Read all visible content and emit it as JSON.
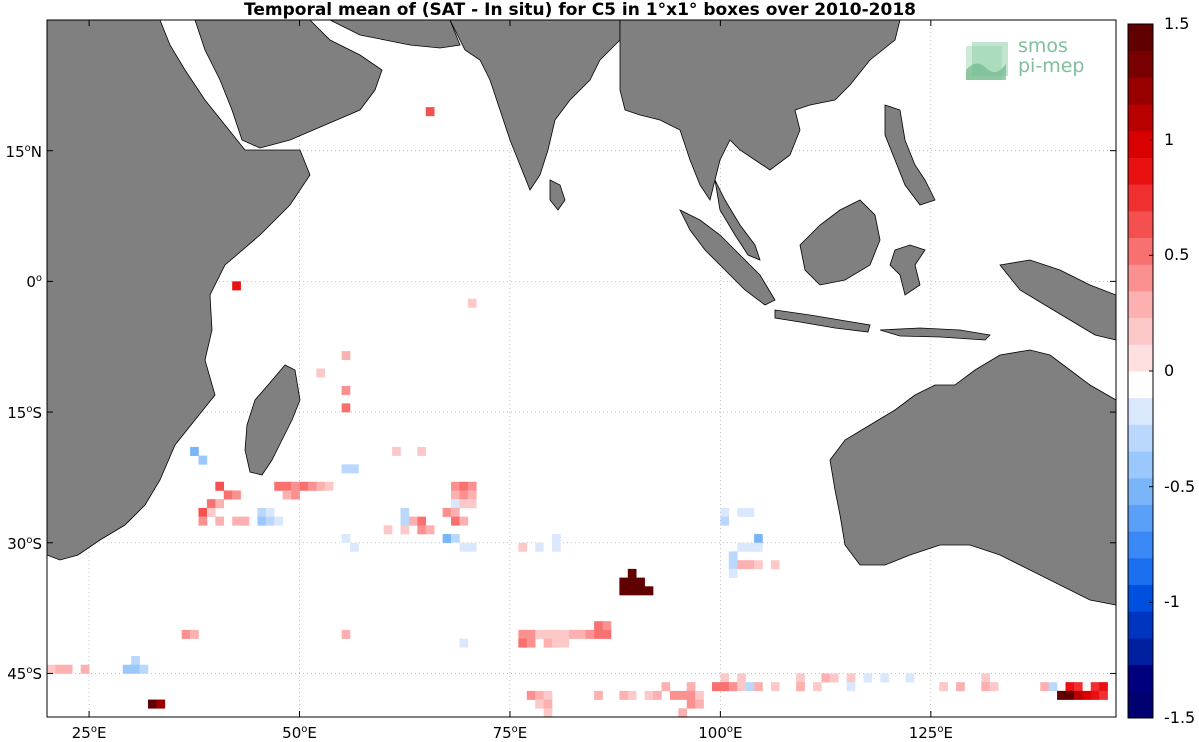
{
  "title": "Temporal mean of (SAT - In situ) for C5 in 1°x1° boxes over 2010-2018",
  "logo": {
    "line1": "smos",
    "line2": "pi-mep"
  },
  "chart_data": {
    "type": "heatmap",
    "title": "Temporal mean of (SAT - In situ) for C5 in 1°x1° boxes over 2010-2018",
    "projection": "equirectangular",
    "lon_range": [
      20,
      147
    ],
    "lat_range": [
      -50,
      30
    ],
    "x_ticks": [
      {
        "value": 25,
        "deg": "25",
        "hemi": "E"
      },
      {
        "value": 50,
        "deg": "50",
        "hemi": "E"
      },
      {
        "value": 75,
        "deg": "75",
        "hemi": "E"
      },
      {
        "value": 100,
        "deg": "100",
        "hemi": "E"
      },
      {
        "value": 125,
        "deg": "125",
        "hemi": "E"
      }
    ],
    "y_ticks": [
      {
        "value": 15,
        "deg": "15",
        "hemi": "N"
      },
      {
        "value": 0,
        "deg": "0",
        "hemi": ""
      },
      {
        "value": -15,
        "deg": "15",
        "hemi": "S"
      },
      {
        "value": -30,
        "deg": "30",
        "hemi": "S"
      },
      {
        "value": -45,
        "deg": "45",
        "hemi": "S"
      }
    ],
    "grid": true,
    "land_color": "#808080",
    "colorbar": {
      "min": -1.5,
      "max": 1.5,
      "ticks": [
        "1.5",
        "1",
        "0.5",
        "0",
        "-0.5",
        "-1",
        "-1.5"
      ],
      "tick_values": [
        1.5,
        1,
        0.5,
        0,
        -0.5,
        -1,
        -1.5
      ],
      "colors": [
        "#000070",
        "#00007f",
        "#0020a0",
        "#0035c0",
        "#0050e0",
        "#1a6ef0",
        "#3a88f5",
        "#5aa0f8",
        "#7ab5fa",
        "#9ac8fc",
        "#bad8fd",
        "#dae8fe",
        "#ffffff",
        "#fee0e0",
        "#fdc8c8",
        "#fcb0b0",
        "#fa9090",
        "#f87070",
        "#f55050",
        "#f03030",
        "#e81010",
        "#d80000",
        "#b80000",
        "#980000",
        "#780000",
        "#600000"
      ]
    },
    "cells": [
      {
        "lon": 65,
        "lat": 19,
        "v": 0.6
      },
      {
        "lon": 42,
        "lat": -1,
        "v": 0.9
      },
      {
        "lon": 70,
        "lat": -3,
        "v": 0.15
      },
      {
        "lon": 55,
        "lat": -9,
        "v": 0.3
      },
      {
        "lon": 52,
        "lat": -11,
        "v": 0.2
      },
      {
        "lon": 55,
        "lat": -13,
        "v": 0.4
      },
      {
        "lon": 55,
        "lat": -15,
        "v": 0.5
      },
      {
        "lon": 37,
        "lat": -20,
        "v": -0.5
      },
      {
        "lon": 38,
        "lat": -21,
        "v": -0.4
      },
      {
        "lon": 61,
        "lat": -20,
        "v": 0.15
      },
      {
        "lon": 64,
        "lat": -20,
        "v": 0.2
      },
      {
        "lon": 55,
        "lat": -22,
        "v": -0.3
      },
      {
        "lon": 56,
        "lat": -22,
        "v": -0.3
      },
      {
        "lon": 47,
        "lat": -24,
        "v": 0.5
      },
      {
        "lon": 48,
        "lat": -24,
        "v": 0.5
      },
      {
        "lon": 49,
        "lat": -24,
        "v": 0.4
      },
      {
        "lon": 50,
        "lat": -24,
        "v": 0.5
      },
      {
        "lon": 51,
        "lat": -24,
        "v": 0.4
      },
      {
        "lon": 52,
        "lat": -24,
        "v": 0.3
      },
      {
        "lon": 53,
        "lat": -24,
        "v": 0.2
      },
      {
        "lon": 48,
        "lat": -25,
        "v": 0.3
      },
      {
        "lon": 49,
        "lat": -25,
        "v": 0.4
      },
      {
        "lon": 40,
        "lat": -24,
        "v": 0.6
      },
      {
        "lon": 41,
        "lat": -25,
        "v": 0.5
      },
      {
        "lon": 42,
        "lat": -25,
        "v": 0.4
      },
      {
        "lon": 39,
        "lat": -26,
        "v": 0.5
      },
      {
        "lon": 40,
        "lat": -26,
        "v": 0.3
      },
      {
        "lon": 38,
        "lat": -27,
        "v": 0.6
      },
      {
        "lon": 39,
        "lat": -27,
        "v": 0.2
      },
      {
        "lon": 38,
        "lat": -28,
        "v": 0.4
      },
      {
        "lon": 40,
        "lat": -28,
        "v": 0.3
      },
      {
        "lon": 42,
        "lat": -28,
        "v": 0.3
      },
      {
        "lon": 43,
        "lat": -28,
        "v": 0.3
      },
      {
        "lon": 45,
        "lat": -27,
        "v": -0.3
      },
      {
        "lon": 46,
        "lat": -27,
        "v": -0.2
      },
      {
        "lon": 45,
        "lat": -28,
        "v": -0.4
      },
      {
        "lon": 46,
        "lat": -28,
        "v": -0.3
      },
      {
        "lon": 47,
        "lat": -28,
        "v": -0.2
      },
      {
        "lon": 68,
        "lat": -24,
        "v": 0.4
      },
      {
        "lon": 69,
        "lat": -24,
        "v": 0.5
      },
      {
        "lon": 70,
        "lat": -24,
        "v": 0.4
      },
      {
        "lon": 68,
        "lat": -25,
        "v": 0.3
      },
      {
        "lon": 69,
        "lat": -25,
        "v": 0.35
      },
      {
        "lon": 70,
        "lat": -25,
        "v": 0.3
      },
      {
        "lon": 68,
        "lat": -26,
        "v": -0.2
      },
      {
        "lon": 69,
        "lat": -26,
        "v": 0.2
      },
      {
        "lon": 70,
        "lat": -26,
        "v": 0.2
      },
      {
        "lon": 67,
        "lat": -27,
        "v": 0.4
      },
      {
        "lon": 68,
        "lat": -27,
        "v": 0.3
      },
      {
        "lon": 68,
        "lat": -28,
        "v": 0.5
      },
      {
        "lon": 69,
        "lat": -28,
        "v": 0.3
      },
      {
        "lon": 62,
        "lat": -27,
        "v": -0.3
      },
      {
        "lon": 62,
        "lat": -28,
        "v": -0.25
      },
      {
        "lon": 63,
        "lat": -28,
        "v": 0.3
      },
      {
        "lon": 64,
        "lat": -28,
        "v": 0.5
      },
      {
        "lon": 64,
        "lat": -29,
        "v": 0.4
      },
      {
        "lon": 65,
        "lat": -29,
        "v": 0.3
      },
      {
        "lon": 60,
        "lat": -29,
        "v": 0.2
      },
      {
        "lon": 62,
        "lat": -29,
        "v": 0.2
      },
      {
        "lon": 67,
        "lat": -30,
        "v": -0.5
      },
      {
        "lon": 68,
        "lat": -30,
        "v": -0.3
      },
      {
        "lon": 69,
        "lat": -31,
        "v": -0.2
      },
      {
        "lon": 70,
        "lat": -31,
        "v": -0.15
      },
      {
        "lon": 68,
        "lat": -31,
        "v": -0.1
      },
      {
        "lon": 55,
        "lat": -30,
        "v": -0.15
      },
      {
        "lon": 55,
        "lat": -31,
        "v": -0.1
      },
      {
        "lon": 56,
        "lat": -31,
        "v": -0.15
      },
      {
        "lon": 76,
        "lat": -31,
        "v": 0.2
      },
      {
        "lon": 79,
        "lat": -30,
        "v": -0.1
      },
      {
        "lon": 80,
        "lat": -30,
        "v": -0.15
      },
      {
        "lon": 78,
        "lat": -31,
        "v": -0.15
      },
      {
        "lon": 79,
        "lat": -31,
        "v": -0.1
      },
      {
        "lon": 80,
        "lat": -31,
        "v": -0.15
      },
      {
        "lon": 100,
        "lat": -27,
        "v": -0.2
      },
      {
        "lon": 102,
        "lat": -27,
        "v": -0.15
      },
      {
        "lon": 103,
        "lat": -27,
        "v": -0.15
      },
      {
        "lon": 100,
        "lat": -28,
        "v": -0.3
      },
      {
        "lon": 104,
        "lat": -30,
        "v": -0.5
      },
      {
        "lon": 102,
        "lat": -31,
        "v": -0.2
      },
      {
        "lon": 103,
        "lat": -31,
        "v": -0.2
      },
      {
        "lon": 104,
        "lat": -31,
        "v": -0.2
      },
      {
        "lon": 101,
        "lat": -32,
        "v": -0.3
      },
      {
        "lon": 101,
        "lat": -33,
        "v": -0.25
      },
      {
        "lon": 102,
        "lat": -33,
        "v": 0.3
      },
      {
        "lon": 103,
        "lat": -33,
        "v": 0.3
      },
      {
        "lon": 104,
        "lat": -33,
        "v": 0.2
      },
      {
        "lon": 106,
        "lat": -33,
        "v": 0.2
      },
      {
        "lon": 101,
        "lat": -34,
        "v": -0.2
      },
      {
        "lon": 89,
        "lat": -34,
        "v": 1.5
      },
      {
        "lon": 88,
        "lat": -35,
        "v": 1.5
      },
      {
        "lon": 89,
        "lat": -35,
        "v": 1.5
      },
      {
        "lon": 90,
        "lat": -35,
        "v": 1.5
      },
      {
        "lon": 88,
        "lat": -36,
        "v": 1.5
      },
      {
        "lon": 89,
        "lat": -36,
        "v": 1.5
      },
      {
        "lon": 90,
        "lat": -36,
        "v": 1.5
      },
      {
        "lon": 91,
        "lat": -36,
        "v": 1.5
      },
      {
        "lon": 36,
        "lat": -41,
        "v": 0.4
      },
      {
        "lon": 37,
        "lat": -41,
        "v": 0.3
      },
      {
        "lon": 55,
        "lat": -41,
        "v": 0.3
      },
      {
        "lon": 69,
        "lat": -42,
        "v": -0.2
      },
      {
        "lon": 76,
        "lat": -41,
        "v": 0.4
      },
      {
        "lon": 77,
        "lat": -41,
        "v": 0.4
      },
      {
        "lon": 78,
        "lat": -41,
        "v": 0.2
      },
      {
        "lon": 79,
        "lat": -41,
        "v": 0.2
      },
      {
        "lon": 80,
        "lat": -41,
        "v": 0.2
      },
      {
        "lon": 81,
        "lat": -41,
        "v": 0.2
      },
      {
        "lon": 82,
        "lat": -41,
        "v": 0.3
      },
      {
        "lon": 83,
        "lat": -41,
        "v": 0.3
      },
      {
        "lon": 84,
        "lat": -41,
        "v": 0.4
      },
      {
        "lon": 85,
        "lat": -41,
        "v": 0.5
      },
      {
        "lon": 86,
        "lat": -41,
        "v": 0.5
      },
      {
        "lon": 85,
        "lat": -40,
        "v": 0.5
      },
      {
        "lon": 86,
        "lat": -40,
        "v": 0.45
      },
      {
        "lon": 76,
        "lat": -42,
        "v": 0.5
      },
      {
        "lon": 77,
        "lat": -42,
        "v": 0.4
      },
      {
        "lon": 79,
        "lat": -42,
        "v": 0.3
      },
      {
        "lon": 80,
        "lat": -42,
        "v": 0.2
      },
      {
        "lon": 81,
        "lat": -42,
        "v": 0.15
      },
      {
        "lon": 20,
        "lat": -45,
        "v": 0.2
      },
      {
        "lon": 21,
        "lat": -45,
        "v": 0.3
      },
      {
        "lon": 22,
        "lat": -45,
        "v": 0.3
      },
      {
        "lon": 24,
        "lat": -45,
        "v": 0.3
      },
      {
        "lon": 30,
        "lat": -44,
        "v": -0.3
      },
      {
        "lon": 29,
        "lat": -45,
        "v": -0.4
      },
      {
        "lon": 30,
        "lat": -45,
        "v": -0.4
      },
      {
        "lon": 31,
        "lat": -45,
        "v": -0.3
      },
      {
        "lon": 32,
        "lat": -49,
        "v": 1.5
      },
      {
        "lon": 33,
        "lat": -49,
        "v": 1.2
      },
      {
        "lon": 100,
        "lat": -46,
        "v": 0.2
      },
      {
        "lon": 102,
        "lat": -46,
        "v": 0.2
      },
      {
        "lon": 109,
        "lat": -46,
        "v": 0.2
      },
      {
        "lon": 112,
        "lat": -46,
        "v": 0.3
      },
      {
        "lon": 113,
        "lat": -46,
        "v": 0.2
      },
      {
        "lon": 115,
        "lat": -46,
        "v": 0.2
      },
      {
        "lon": 117,
        "lat": -46,
        "v": -0.15
      },
      {
        "lon": 119,
        "lat": -46,
        "v": -0.2
      },
      {
        "lon": 122,
        "lat": -46,
        "v": -0.2
      },
      {
        "lon": 131,
        "lat": -46,
        "v": 0.2
      },
      {
        "lon": 99,
        "lat": -47,
        "v": 0.5
      },
      {
        "lon": 100,
        "lat": -47,
        "v": 0.5
      },
      {
        "lon": 101,
        "lat": -47,
        "v": 0.4
      },
      {
        "lon": 102,
        "lat": -47,
        "v": 0.2
      },
      {
        "lon": 103,
        "lat": -47,
        "v": -0.3
      },
      {
        "lon": 104,
        "lat": -47,
        "v": 0.3
      },
      {
        "lon": 106,
        "lat": -47,
        "v": 0.2
      },
      {
        "lon": 109,
        "lat": -47,
        "v": 0.3
      },
      {
        "lon": 111,
        "lat": -47,
        "v": 0.2
      },
      {
        "lon": 115,
        "lat": -47,
        "v": -0.2
      },
      {
        "lon": 126,
        "lat": -47,
        "v": 0.2
      },
      {
        "lon": 128,
        "lat": -47,
        "v": 0.3
      },
      {
        "lon": 131,
        "lat": -47,
        "v": 0.3
      },
      {
        "lon": 132,
        "lat": -47,
        "v": 0.2
      },
      {
        "lon": 138,
        "lat": -47,
        "v": 0.3
      },
      {
        "lon": 139,
        "lat": -47,
        "v": -0.3
      },
      {
        "lon": 141,
        "lat": -47,
        "v": 0.9
      },
      {
        "lon": 142,
        "lat": -47,
        "v": 0.8
      },
      {
        "lon": 144,
        "lat": -47,
        "v": 0.8
      },
      {
        "lon": 145,
        "lat": -47,
        "v": 0.9
      },
      {
        "lon": 93,
        "lat": -47,
        "v": 0.3
      },
      {
        "lon": 96,
        "lat": -47,
        "v": 0.3
      },
      {
        "lon": 95,
        "lat": -48,
        "v": 0.4
      },
      {
        "lon": 96,
        "lat": -48,
        "v": 0.4
      },
      {
        "lon": 97,
        "lat": -48,
        "v": 0.2
      },
      {
        "lon": 140,
        "lat": -48,
        "v": 1.5
      },
      {
        "lon": 141,
        "lat": -48,
        "v": 1.4
      },
      {
        "lon": 142,
        "lat": -48,
        "v": 1.1
      },
      {
        "lon": 143,
        "lat": -48,
        "v": 1.0
      },
      {
        "lon": 144,
        "lat": -48,
        "v": 0.9
      },
      {
        "lon": 145,
        "lat": -48,
        "v": 0.8
      },
      {
        "lon": 77,
        "lat": -48,
        "v": 0.4
      },
      {
        "lon": 78,
        "lat": -48,
        "v": 0.3
      },
      {
        "lon": 79,
        "lat": -48,
        "v": 0.2
      },
      {
        "lon": 85,
        "lat": -48,
        "v": 0.3
      },
      {
        "lon": 88,
        "lat": -48,
        "v": 0.3
      },
      {
        "lon": 89,
        "lat": -48,
        "v": 0.2
      },
      {
        "lon": 91,
        "lat": -48,
        "v": 0.2
      },
      {
        "lon": 92,
        "lat": -48,
        "v": 0.3
      },
      {
        "lon": 94,
        "lat": -48,
        "v": 0.4
      },
      {
        "lon": 78,
        "lat": -49,
        "v": 0.2
      },
      {
        "lon": 79,
        "lat": -49,
        "v": 0.3
      },
      {
        "lon": 96,
        "lat": -49,
        "v": 0.4
      },
      {
        "lon": 97,
        "lat": -49,
        "v": 0.3
      },
      {
        "lon": 79,
        "lat": -50,
        "v": 0.2
      },
      {
        "lon": 95,
        "lat": -50,
        "v": 0.3
      }
    ]
  }
}
